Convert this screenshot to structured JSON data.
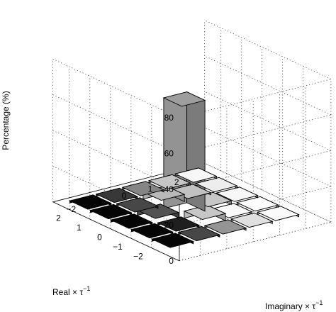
{
  "chart_data": {
    "type": "bar3d",
    "title": "",
    "zlabel": "Percentage (%)",
    "xlabel": "Real × τ",
    "xlabel_sup": "−1",
    "ylabel": "Imaginary × τ",
    "ylabel_sup": "−1",
    "zlim": [
      0,
      80
    ],
    "z_ticks": [
      "0",
      "20",
      "40",
      "60",
      "80"
    ],
    "real_ticks": [
      "−2",
      "−1",
      "0",
      "1",
      "2"
    ],
    "imag_ticks": [
      "−2",
      "−1",
      "0",
      "1",
      "2"
    ],
    "grid": true,
    "bars": [
      {
        "re": -2,
        "im": -2,
        "value": 0,
        "gray": 0.02
      },
      {
        "re": -2,
        "im": -1,
        "value": 0,
        "gray": 0.28
      },
      {
        "re": -2,
        "im": 0,
        "value": 0,
        "gray": 0.58
      },
      {
        "re": -2,
        "im": 1,
        "value": 0,
        "gray": 0.88
      },
      {
        "re": -2,
        "im": 2,
        "value": 0,
        "gray": 0.98
      },
      {
        "re": -1,
        "im": -2,
        "value": 0,
        "gray": 0.02
      },
      {
        "re": -1,
        "im": -1,
        "value": 0,
        "gray": 0.12
      },
      {
        "re": -1,
        "im": 0,
        "value": 4,
        "gray": 0.78
      },
      {
        "re": -1,
        "im": 1,
        "value": 0,
        "gray": 0.98
      },
      {
        "re": -1,
        "im": 2,
        "value": 0,
        "gray": 0.99
      },
      {
        "re": 0,
        "im": -2,
        "value": 0,
        "gray": 0.02
      },
      {
        "re": 0,
        "im": -1,
        "value": 3,
        "gray": 0.32
      },
      {
        "re": 0,
        "im": 0,
        "value": 62,
        "gray": 0.62
      },
      {
        "re": 0,
        "im": 1,
        "value": 2,
        "gray": 0.78
      },
      {
        "re": 0,
        "im": 2,
        "value": 0,
        "gray": 0.97
      },
      {
        "re": 1,
        "im": -2,
        "value": 0,
        "gray": 0.02
      },
      {
        "re": 1,
        "im": -1,
        "value": 0,
        "gray": 0.28
      },
      {
        "re": 1,
        "im": 0,
        "value": 4,
        "gray": 0.72
      },
      {
        "re": 1,
        "im": 1,
        "value": 0,
        "gray": 0.76
      },
      {
        "re": 1,
        "im": 2,
        "value": 0,
        "gray": 0.93
      },
      {
        "re": 2,
        "im": -2,
        "value": 0,
        "gray": 0.02
      },
      {
        "re": 2,
        "im": -1,
        "value": 0,
        "gray": 0.22
      },
      {
        "re": 2,
        "im": 0,
        "value": 0,
        "gray": 0.52
      },
      {
        "re": 2,
        "im": 1,
        "value": 0,
        "gray": 0.78
      },
      {
        "re": 2,
        "im": 2,
        "value": 0,
        "gray": 0.97
      }
    ]
  }
}
